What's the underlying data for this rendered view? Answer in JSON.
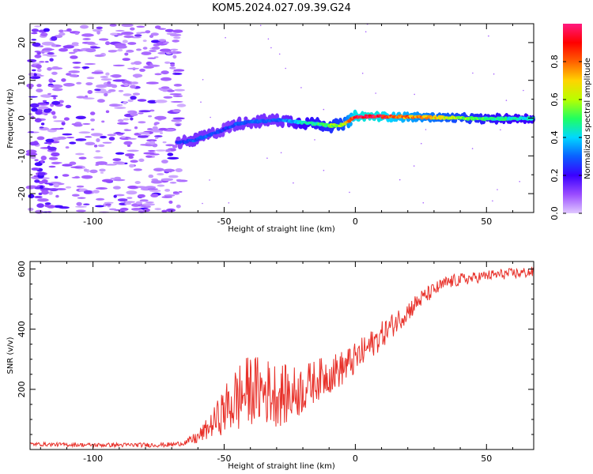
{
  "figure": {
    "title": "KOM5.2024.027.09.39.G24"
  },
  "chart_data": [
    {
      "type": "heatmap",
      "xlabel": "Height of straight line (km)",
      "ylabel": "Frequency (Hz)",
      "xlim": [
        -124,
        68
      ],
      "ylim": [
        -25,
        25
      ],
      "x_ticks": [
        -100,
        -50,
        0,
        50
      ],
      "y_ticks": [
        -20,
        -10,
        0,
        10,
        20
      ],
      "colorbar": {
        "label": "Normalized spectral amplitude",
        "range": [
          0,
          1
        ],
        "ticks": [
          "0.0",
          "0.2",
          "0.4",
          "0.6",
          "0.8"
        ],
        "colormap": [
          "#e0c8ff",
          "#9a4cff",
          "#3a00ff",
          "#0a60ff",
          "#00d8ff",
          "#20ff60",
          "#b8ff00",
          "#ffd400",
          "#ff6000",
          "#ff0000",
          "#ff1a80"
        ]
      },
      "ridge": {
        "comment_free": true,
        "x": [
          -68,
          -62,
          -56,
          -50,
          -45,
          -40,
          -35,
          -30,
          -25,
          -20,
          -15,
          -10,
          -5,
          0,
          5,
          10,
          20,
          30,
          40,
          50,
          60,
          68
        ],
        "freq": [
          -6.5,
          -6.0,
          -4.5,
          -3.0,
          -1.5,
          -1.0,
          -0.8,
          -0.5,
          -0.8,
          -1.2,
          -1.5,
          -2.0,
          -1.8,
          0.3,
          0.5,
          0.4,
          0.3,
          0.2,
          0.0,
          -0.2,
          -0.1,
          -0.1
        ],
        "amplitude": [
          0.25,
          0.3,
          0.3,
          0.25,
          0.3,
          0.3,
          0.3,
          0.3,
          0.35,
          0.45,
          0.5,
          0.55,
          0.6,
          0.92,
          0.95,
          0.92,
          0.8,
          0.7,
          0.6,
          0.5,
          0.45,
          0.45
        ]
      },
      "noise_region_x": [
        -124,
        -66
      ]
    },
    {
      "type": "line",
      "xlabel": "Height of straight line (km)",
      "ylabel": "SNR (v/v)",
      "xlim": [
        -124,
        68
      ],
      "ylim": [
        0,
        625
      ],
      "x_ticks": [
        -100,
        -50,
        0,
        50
      ],
      "y_ticks": [
        200,
        400,
        600
      ],
      "color": "#e8312a",
      "trend": {
        "x": [
          -124,
          -110,
          -100,
          -90,
          -80,
          -70,
          -65,
          -60,
          -55,
          -50,
          -45,
          -40,
          -35,
          -30,
          -25,
          -20,
          -15,
          -10,
          -5,
          0,
          5,
          10,
          15,
          20,
          25,
          30,
          35,
          40,
          45,
          50,
          55,
          60,
          65,
          68
        ],
        "y": [
          18,
          16,
          15,
          15,
          15,
          16,
          22,
          40,
          80,
          130,
          170,
          200,
          195,
          185,
          180,
          200,
          230,
          250,
          270,
          300,
          340,
          380,
          420,
          460,
          500,
          530,
          555,
          565,
          570,
          578,
          582,
          585,
          588,
          590
        ]
      },
      "noise_amp": {
        "x": [
          -124,
          -65,
          -55,
          -45,
          -30,
          -15,
          0,
          15,
          30,
          50,
          68
        ],
        "y": [
          6,
          8,
          40,
          120,
          110,
          70,
          55,
          40,
          25,
          18,
          18
        ]
      }
    }
  ]
}
